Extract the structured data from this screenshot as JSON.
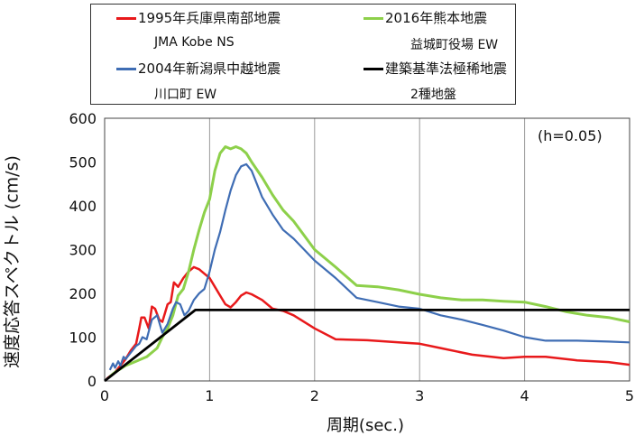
{
  "legend": {
    "entries": [
      {
        "name": "1995年兵庫県南部地震",
        "sub": "JMA Kobe NS",
        "color": "#e8191b"
      },
      {
        "name": "2016年熊本地震",
        "sub": "益城町役場 EW",
        "color": "#8dd04a"
      },
      {
        "name": "2004年新潟県中越地震",
        "sub": "川口町 EW",
        "color": "#3f6db4"
      },
      {
        "name": "建築基準法極稀地震",
        "sub": "2種地盤",
        "color": "#000000"
      }
    ]
  },
  "annotation": "(h=0.05)",
  "chart_data": {
    "type": "line",
    "xlabel": "周期(sec.)",
    "ylabel": "速度応答スペクトル (cm/s)",
    "xlim": [
      0,
      5
    ],
    "ylim": [
      0,
      600
    ],
    "xticks": [
      "0",
      "1",
      "2",
      "3",
      "4",
      "5"
    ],
    "yticks": [
      "0",
      "100",
      "200",
      "300",
      "400",
      "500",
      "600"
    ],
    "grid": "vertical",
    "series": [
      {
        "name": "1995年兵庫県南部地震 JMA Kobe NS",
        "color": "#e8191b",
        "x": [
          0.02,
          0.1,
          0.2,
          0.25,
          0.3,
          0.33,
          0.35,
          0.38,
          0.42,
          0.45,
          0.48,
          0.52,
          0.55,
          0.6,
          0.63,
          0.66,
          0.7,
          0.75,
          0.8,
          0.85,
          0.9,
          0.95,
          1.0,
          1.05,
          1.1,
          1.15,
          1.2,
          1.25,
          1.3,
          1.35,
          1.4,
          1.5,
          1.6,
          1.7,
          1.8,
          2.0,
          2.2,
          2.5,
          2.8,
          3.0,
          3.2,
          3.5,
          3.8,
          4.0,
          4.2,
          4.5,
          4.8,
          5.0
        ],
        "values": [
          5,
          20,
          50,
          70,
          85,
          120,
          145,
          145,
          120,
          170,
          165,
          140,
          135,
          175,
          180,
          225,
          215,
          235,
          250,
          260,
          255,
          245,
          235,
          215,
          195,
          175,
          168,
          180,
          195,
          202,
          198,
          185,
          165,
          160,
          150,
          120,
          95,
          93,
          88,
          85,
          75,
          60,
          52,
          55,
          55,
          47,
          43,
          37
        ]
      },
      {
        "name": "2016年熊本地震 益城町役場 EW",
        "color": "#8dd04a",
        "x": [
          0.05,
          0.1,
          0.2,
          0.3,
          0.4,
          0.45,
          0.5,
          0.55,
          0.6,
          0.65,
          0.7,
          0.75,
          0.8,
          0.85,
          0.9,
          0.95,
          1.0,
          1.05,
          1.1,
          1.15,
          1.2,
          1.25,
          1.3,
          1.35,
          1.4,
          1.5,
          1.6,
          1.7,
          1.8,
          2.0,
          2.2,
          2.4,
          2.6,
          2.8,
          3.0,
          3.2,
          3.4,
          3.6,
          3.8,
          4.0,
          4.2,
          4.4,
          4.6,
          4.8,
          5.0
        ],
        "values": [
          10,
          20,
          35,
          45,
          55,
          65,
          75,
          100,
          120,
          150,
          195,
          210,
          250,
          300,
          345,
          385,
          415,
          480,
          520,
          535,
          530,
          535,
          530,
          520,
          500,
          465,
          425,
          390,
          365,
          300,
          260,
          218,
          215,
          208,
          198,
          190,
          185,
          185,
          182,
          180,
          170,
          158,
          150,
          145,
          135
        ]
      },
      {
        "name": "2004年新潟県中越地震 川口町 EW",
        "color": "#3f6db4",
        "x": [
          0.05,
          0.08,
          0.1,
          0.13,
          0.15,
          0.18,
          0.2,
          0.25,
          0.3,
          0.33,
          0.36,
          0.4,
          0.45,
          0.5,
          0.55,
          0.6,
          0.65,
          0.68,
          0.72,
          0.76,
          0.8,
          0.85,
          0.9,
          0.95,
          1.0,
          1.05,
          1.1,
          1.15,
          1.2,
          1.25,
          1.3,
          1.35,
          1.4,
          1.5,
          1.6,
          1.7,
          1.8,
          2.0,
          2.2,
          2.4,
          2.6,
          2.8,
          3.0,
          3.2,
          3.4,
          3.6,
          3.8,
          4.0,
          4.2,
          4.5,
          4.8,
          5.0
        ],
        "values": [
          25,
          40,
          30,
          45,
          35,
          55,
          50,
          65,
          80,
          85,
          100,
          95,
          140,
          150,
          110,
          130,
          165,
          180,
          175,
          150,
          160,
          185,
          200,
          210,
          250,
          300,
          340,
          390,
          435,
          470,
          490,
          495,
          480,
          420,
          380,
          345,
          325,
          275,
          235,
          190,
          180,
          170,
          165,
          150,
          140,
          128,
          115,
          100,
          92,
          92,
          90,
          88
        ]
      },
      {
        "name": "建築基準法極稀地震 2種地盤",
        "color": "#000000",
        "x": [
          0,
          0.864,
          5.0
        ],
        "values": [
          0,
          162,
          162
        ]
      }
    ]
  }
}
